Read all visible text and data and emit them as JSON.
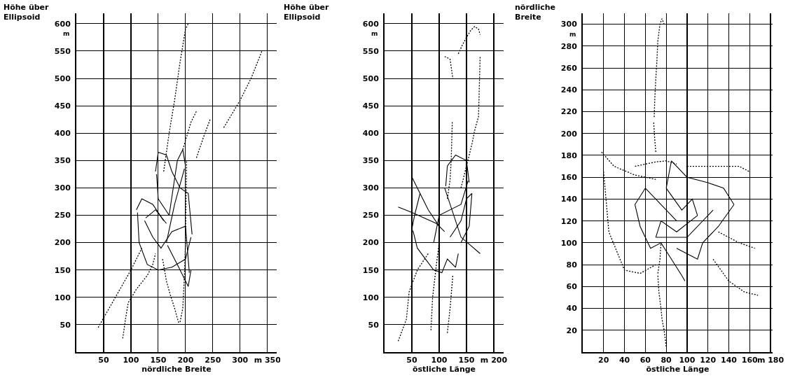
{
  "chart_data": [
    {
      "type": "line",
      "ylabel": "Höhe über Ellipsoid",
      "xlabel": "nördliche Breite",
      "annotations": [
        "m"
      ],
      "xlim": [
        0,
        367
      ],
      "ylim": [
        0,
        619
      ],
      "xticks": [
        50,
        100,
        150,
        200,
        250,
        300,
        {
          "value": 350,
          "label": "m 350"
        }
      ],
      "yticks": [
        50,
        100,
        150,
        200,
        250,
        300,
        350,
        400,
        450,
        500,
        550,
        600
      ],
      "grid": true,
      "marker": "none",
      "series": [
        {
          "color": "#000000",
          "line_style": "solid",
          "x": [
            110,
            120,
            140,
            160
          ],
          "values": [
            260,
            280,
            270,
            240
          ]
        },
        {
          "color": "#000000",
          "line_style": "solid",
          "x": [
            112,
            115,
            130,
            150,
            175,
            200,
            210
          ],
          "values": [
            255,
            200,
            160,
            150,
            155,
            170,
            210
          ]
        },
        {
          "color": "#000000",
          "line_style": "solid",
          "x": [
            145,
            150,
            165,
            175,
            190,
            205,
            212
          ],
          "values": [
            330,
            365,
            360,
            330,
            300,
            290,
            215
          ]
        },
        {
          "color": "#000000",
          "line_style": "solid",
          "x": [
            147,
            150,
            170,
            185,
            195,
            200
          ],
          "values": [
            325,
            280,
            250,
            350,
            370,
            340
          ]
        },
        {
          "color": "#000000",
          "line_style": "solid",
          "x": [
            165,
            180,
            198
          ],
          "values": [
            200,
            270,
            335
          ]
        },
        {
          "color": "#000000",
          "line_style": "solid",
          "x": [
            167,
            185,
            205,
            210
          ],
          "values": [
            195,
            160,
            120,
            150
          ]
        },
        {
          "color": "#000000",
          "line_style": "solid",
          "x": [
            125,
            140,
            155,
            175,
            200,
            207
          ],
          "values": [
            240,
            210,
            190,
            220,
            230,
            145
          ]
        },
        {
          "color": "#000000",
          "line_style": "solid",
          "x": [
            127,
            145,
            165
          ],
          "values": [
            245,
            260,
            235
          ]
        },
        {
          "color": "#000000",
          "line_style": "dotted",
          "x": [
            40,
            60,
            80,
            100,
            110,
            120
          ],
          "values": [
            45,
            80,
            115,
            150,
            170,
            190
          ]
        },
        {
          "color": "#000000",
          "line_style": "dotted",
          "x": [
            85,
            90,
            95,
            110,
            130,
            140,
            145
          ],
          "values": [
            25,
            60,
            90,
            115,
            140,
            160,
            180
          ]
        },
        {
          "color": "#000000",
          "line_style": "dotted",
          "x": [
            158,
            165,
            172,
            180,
            185,
            188
          ],
          "values": [
            170,
            130,
            105,
            80,
            62,
            52
          ]
        },
        {
          "color": "#000000",
          "line_style": "dotted",
          "x": [
            190,
            192,
            195,
            198,
            200,
            201,
            202
          ],
          "values": [
            55,
            65,
            80,
            140,
            200,
            275,
            350
          ]
        },
        {
          "color": "#000000",
          "line_style": "dotted",
          "x": [
            160,
            170,
            180,
            190,
            200,
            205
          ],
          "values": [
            330,
            400,
            460,
            530,
            590,
            600
          ]
        },
        {
          "color": "#000000",
          "line_style": "dotted",
          "x": [
            220,
            232,
            245
          ],
          "values": [
            355,
            390,
            425
          ]
        },
        {
          "color": "#000000",
          "line_style": "dotted",
          "x": [
            195,
            210,
            220
          ],
          "values": [
            370,
            420,
            440
          ]
        },
        {
          "color": "#000000",
          "line_style": "dotted",
          "x": [
            270,
            300,
            320,
            340
          ],
          "values": [
            410,
            460,
            500,
            550
          ]
        }
      ]
    },
    {
      "type": "line",
      "ylabel": "Höhe über Ellipsoid",
      "xlabel": "östliche Länge",
      "annotations": [
        "m"
      ],
      "xlim": [
        0,
        218
      ],
      "ylim": [
        0,
        619
      ],
      "xticks": [
        50,
        100,
        150,
        {
          "value": 200,
          "label": "m 200"
        }
      ],
      "yticks": [
        50,
        100,
        150,
        200,
        250,
        300,
        350,
        400,
        450,
        500,
        550,
        600
      ],
      "grid": true,
      "marker": "none",
      "series": [
        {
          "color": "#000000",
          "line_style": "solid",
          "x": [
            50,
            60,
            80,
            100
          ],
          "values": [
            320,
            300,
            260,
            230
          ]
        },
        {
          "color": "#000000",
          "line_style": "solid",
          "x": [
            50,
            55,
            65
          ],
          "values": [
            225,
            250,
            290
          ]
        },
        {
          "color": "#000000",
          "line_style": "solid",
          "x": [
            52,
            60,
            75,
            90,
            105,
            115,
            130,
            135
          ],
          "values": [
            222,
            190,
            170,
            150,
            145,
            170,
            155,
            180
          ]
        },
        {
          "color": "#000000",
          "line_style": "solid",
          "x": [
            120,
            140,
            150,
            160
          ],
          "values": [
            210,
            240,
            280,
            290
          ]
        },
        {
          "color": "#000000",
          "line_style": "solid",
          "x": [
            140,
            155,
            160
          ],
          "values": [
            200,
            230,
            290
          ]
        },
        {
          "color": "#000000",
          "line_style": "solid",
          "x": [
            110,
            140,
            175
          ],
          "values": [
            300,
            210,
            180
          ]
        },
        {
          "color": "#000000",
          "line_style": "solid",
          "x": [
            112,
            115,
            130,
            150,
            155
          ],
          "values": [
            303,
            340,
            360,
            350,
            310
          ]
        },
        {
          "color": "#000000",
          "line_style": "solid",
          "x": [
            90,
            100,
            140,
            153
          ],
          "values": [
            200,
            250,
            270,
            313
          ]
        },
        {
          "color": "#000000",
          "line_style": "solid",
          "x": [
            25,
            50,
            95,
            110
          ],
          "values": [
            265,
            255,
            235,
            220
          ]
        },
        {
          "color": "#000000",
          "line_style": "dotted",
          "x": [
            25,
            40,
            45,
            60,
            80
          ],
          "values": [
            20,
            60,
            110,
            150,
            180
          ]
        },
        {
          "color": "#000000",
          "line_style": "dotted",
          "x": [
            85,
            88,
            95,
            100
          ],
          "values": [
            40,
            100,
            160,
            200
          ]
        },
        {
          "color": "#000000",
          "line_style": "dotted",
          "x": [
            115,
            120,
            125
          ],
          "values": [
            35,
            80,
            140
          ]
        },
        {
          "color": "#000000",
          "line_style": "dotted",
          "x": [
            110,
            115,
            120,
            125
          ],
          "values": [
            540,
            538,
            535,
            500
          ]
        },
        {
          "color": "#000000",
          "line_style": "dotted",
          "x": [
            115,
            120,
            122,
            124
          ],
          "values": [
            280,
            315,
            350,
            420
          ]
        },
        {
          "color": "#000000",
          "line_style": "dotted",
          "x": [
            135,
            142,
            150,
            158,
            165,
            172,
            175
          ],
          "values": [
            545,
            560,
            575,
            588,
            595,
            590,
            580
          ]
        },
        {
          "color": "#000000",
          "line_style": "dotted",
          "x": [
            140,
            145,
            150,
            155,
            160,
            165,
            172,
            173,
            175
          ],
          "values": [
            300,
            320,
            340,
            360,
            380,
            405,
            430,
            465,
            540
          ]
        }
      ]
    },
    {
      "type": "line",
      "ylabel": "nördliche Breite",
      "xlabel": "östliche Länge",
      "annotations": [
        "m"
      ],
      "xlim": [
        0,
        182
      ],
      "ylim": [
        0,
        310
      ],
      "xticks": [
        20,
        40,
        60,
        80,
        100,
        120,
        140,
        160,
        {
          "value": 180,
          "label": "m 180"
        }
      ],
      "yticks": [
        20,
        40,
        60,
        80,
        100,
        120,
        140,
        160,
        180,
        200,
        220,
        240,
        260,
        280,
        300
      ],
      "grid": true,
      "marker": "none",
      "series": [
        {
          "color": "#000000",
          "line_style": "solid",
          "x": [
            50,
            60,
            70,
            90
          ],
          "values": [
            135,
            150,
            140,
            120
          ]
        },
        {
          "color": "#000000",
          "line_style": "solid",
          "x": [
            50,
            55,
            65,
            75,
            85,
            95,
            98
          ],
          "values": [
            135,
            115,
            95,
            100,
            85,
            70,
            65
          ]
        },
        {
          "color": "#000000",
          "line_style": "solid",
          "x": [
            90,
            110,
            115,
            130,
            145
          ],
          "values": [
            95,
            85,
            100,
            115,
            135
          ]
        },
        {
          "color": "#000000",
          "line_style": "solid",
          "x": [
            80,
            85,
            100,
            120,
            135,
            145
          ],
          "values": [
            150,
            175,
            160,
            155,
            150,
            135
          ]
        },
        {
          "color": "#000000",
          "line_style": "solid",
          "x": [
            80,
            95,
            105,
            110
          ],
          "values": [
            150,
            130,
            140,
            125
          ]
        },
        {
          "color": "#000000",
          "line_style": "solid",
          "x": [
            70,
            75,
            90,
            110
          ],
          "values": [
            105,
            120,
            110,
            125
          ]
        },
        {
          "color": "#000000",
          "line_style": "solid",
          "x": [
            70,
            100,
            125
          ],
          "values": [
            105,
            105,
            130
          ]
        },
        {
          "color": "#000000",
          "line_style": "dotted",
          "x": [
            72,
            73,
            75,
            76,
            78,
            80
          ],
          "values": [
            70,
            55,
            40,
            30,
            20,
            5
          ]
        },
        {
          "color": "#000000",
          "line_style": "dotted",
          "x": [
            72,
            74,
            75
          ],
          "values": [
            72,
            85,
            100
          ]
        },
        {
          "color": "#000000",
          "line_style": "dotted",
          "x": [
            68,
            69,
            70
          ],
          "values": [
            210,
            195,
            183
          ]
        },
        {
          "color": "#000000",
          "line_style": "dotted",
          "x": [
            68.5,
            69,
            70,
            71,
            72,
            74,
            76,
            78
          ],
          "values": [
            215,
            230,
            250,
            265,
            285,
            300,
            305,
            300
          ]
        },
        {
          "color": "#000000",
          "line_style": "dotted",
          "x": [
            18,
            30,
            50,
            70
          ],
          "values": [
            183,
            170,
            162,
            158
          ]
        },
        {
          "color": "#000000",
          "line_style": "dotted",
          "x": [
            20,
            25,
            40,
            55,
            70
          ],
          "values": [
            165,
            110,
            75,
            72,
            80
          ]
        },
        {
          "color": "#000000",
          "line_style": "dotted",
          "x": [
            100,
            115,
            130,
            140,
            150,
            160
          ],
          "values": [
            170,
            170,
            170,
            170,
            170,
            165
          ]
        },
        {
          "color": "#000000",
          "line_style": "dotted",
          "x": [
            130,
            150,
            165
          ],
          "values": [
            110,
            100,
            95
          ]
        },
        {
          "color": "#000000",
          "line_style": "dotted",
          "x": [
            125,
            140,
            155,
            168
          ],
          "values": [
            85,
            65,
            55,
            52
          ]
        },
        {
          "color": "#000000",
          "line_style": "dotted",
          "x": [
            50,
            60,
            70,
            80,
            90
          ],
          "values": [
            170,
            172,
            174,
            175,
            172
          ]
        }
      ]
    }
  ]
}
